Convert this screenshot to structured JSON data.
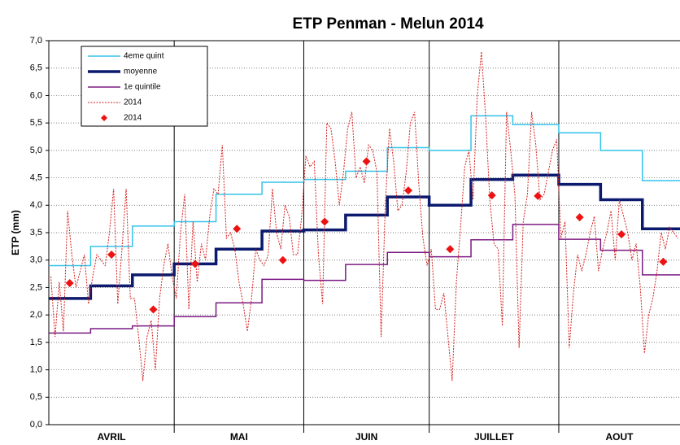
{
  "chart_data": {
    "type": "line",
    "title": "ETP Penman - Melun 2014",
    "y_label": "ETP (mm)",
    "months": [
      "AVRIL",
      "MAI",
      "JUIN",
      "JUILLET",
      "AOUT"
    ],
    "month_starts": [
      0,
      30,
      61,
      91,
      122
    ],
    "xlim": [
      0,
      151
    ],
    "ylim": [
      0,
      7
    ],
    "yticks": [
      {
        "value": 0,
        "label": "0,0"
      },
      {
        "value": 0.5,
        "label": "0,5"
      },
      {
        "value": 1,
        "label": "1,0"
      },
      {
        "value": 1.5,
        "label": "1,5"
      },
      {
        "value": 2,
        "label": "2,0"
      },
      {
        "value": 2.5,
        "label": "2,5"
      },
      {
        "value": 3,
        "label": "3,0"
      },
      {
        "value": 3.5,
        "label": "3,5"
      },
      {
        "value": 4,
        "label": "4,0"
      },
      {
        "value": 4.5,
        "label": "4,5"
      },
      {
        "value": 5,
        "label": "5,0"
      },
      {
        "value": 5.5,
        "label": "5,5"
      },
      {
        "value": 6,
        "label": "6,0"
      },
      {
        "value": 6.5,
        "label": "6,5"
      },
      {
        "value": 7,
        "label": "7,0"
      }
    ],
    "grid": true,
    "decade_starts": [
      0,
      10,
      20,
      30,
      40,
      51,
      61,
      71,
      81,
      91,
      101,
      111,
      122,
      132,
      142
    ],
    "decade_mids": [
      5,
      15,
      25,
      35,
      45,
      56,
      66,
      76,
      86,
      96,
      106,
      117,
      127,
      137,
      147
    ],
    "series": [
      {
        "name": "4eme  quint",
        "style": "step",
        "color": "#33c3ea",
        "width": 1.5,
        "values": [
          2.9,
          3.25,
          3.62,
          3.7,
          4.2,
          4.42,
          4.47,
          4.62,
          5.05,
          5.0,
          5.63,
          5.47,
          5.32,
          5.0,
          4.45
        ]
      },
      {
        "name": "moyenne",
        "style": "step",
        "color": "#0b1a6e",
        "width": 3.5,
        "values": [
          2.3,
          2.53,
          2.73,
          2.93,
          3.2,
          3.53,
          3.55,
          3.82,
          4.15,
          4.0,
          4.47,
          4.55,
          4.38,
          4.1,
          3.57
        ]
      },
      {
        "name": "1e quintile",
        "style": "step",
        "color": "#7b1a82",
        "width": 1.5,
        "values": [
          1.67,
          1.75,
          1.8,
          1.97,
          2.22,
          2.65,
          2.63,
          2.92,
          3.14,
          3.06,
          3.37,
          3.65,
          3.38,
          3.18,
          2.73
        ]
      },
      {
        "name": "2014",
        "style": "daily",
        "color": "#d42020",
        "width": 1,
        "values": [
          2.7,
          1.6,
          2.6,
          1.7,
          3.9,
          3.1,
          2.5,
          2.8,
          3.1,
          2.2,
          2.7,
          3.1,
          3.0,
          2.9,
          3.5,
          4.3,
          2.2,
          3.2,
          4.3,
          2.3,
          2.3,
          1.6,
          0.8,
          1.6,
          1.9,
          1.0,
          2.3,
          2.9,
          3.3,
          2.7,
          2.3,
          3.5,
          4.2,
          2.1,
          3.7,
          2.6,
          3.3,
          3.0,
          3.8,
          4.3,
          4.2,
          5.1,
          3.4,
          3.5,
          3.2,
          2.6,
          2.2,
          1.7,
          2.3,
          3.2,
          3.0,
          2.9,
          3.1,
          4.3,
          3.5,
          3.2,
          4.0,
          3.8,
          3.1,
          3.1,
          3.8,
          4.9,
          4.7,
          4.8,
          3.1,
          2.2,
          5.5,
          5.4,
          4.8,
          4.0,
          4.6,
          5.4,
          5.7,
          4.5,
          4.7,
          4.4,
          5.1,
          5.0,
          4.6,
          1.6,
          4.0,
          5.4,
          4.8,
          3.9,
          4.0,
          4.6,
          5.5,
          5.7,
          4.4,
          3.4,
          2.9,
          3.2,
          2.1,
          2.1,
          2.4,
          1.6,
          0.8,
          2.6,
          3.6,
          4.7,
          5.0,
          4.1,
          6.0,
          6.8,
          5.6,
          4.1,
          3.3,
          3.2,
          1.8,
          5.7,
          5.0,
          4.2,
          1.4,
          3.7,
          4.2,
          5.7,
          5.1,
          4.1,
          4.2,
          4.6,
          5.0,
          5.2,
          3.4,
          3.7,
          1.4,
          2.4,
          3.1,
          2.8,
          3.1,
          3.5,
          3.8,
          2.8,
          3.2,
          3.5,
          3.9,
          3.0,
          4.1,
          3.8,
          3.5,
          3.0,
          3.3,
          2.5,
          1.3,
          2.0,
          2.3,
          2.8,
          3.5,
          3.2,
          3.6,
          3.5,
          3.4
        ]
      },
      {
        "name": "2014",
        "style": "marker",
        "color": "#ee1111",
        "values": [
          2.58,
          3.1,
          2.1,
          2.93,
          3.57,
          3.0,
          3.7,
          4.8,
          4.27,
          3.2,
          4.18,
          4.17,
          3.78,
          3.47,
          2.97
        ]
      }
    ]
  }
}
